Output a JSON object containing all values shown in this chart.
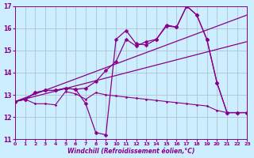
{
  "bg_color": "#cceeff",
  "line_color": "#880088",
  "grid_color": "#aabbcc",
  "xlabel": "Windchill (Refroidissement éolien,°C)",
  "ylim": [
    11,
    17
  ],
  "xlim": [
    0,
    23
  ],
  "yticks": [
    11,
    12,
    13,
    14,
    15,
    16,
    17
  ],
  "xticks": [
    0,
    1,
    2,
    3,
    4,
    5,
    6,
    7,
    8,
    9,
    10,
    11,
    12,
    13,
    14,
    15,
    16,
    17,
    18,
    19,
    20,
    21,
    22,
    23
  ],
  "series": [
    {
      "x": [
        0,
        1,
        2,
        3,
        4,
        5,
        6,
        7,
        8,
        9,
        10,
        11,
        12,
        13,
        14,
        15,
        16,
        17,
        18,
        19,
        20,
        21,
        22,
        23
      ],
      "y": [
        12.7,
        12.8,
        12.6,
        12.6,
        12.55,
        13.15,
        13.05,
        12.8,
        13.1,
        13.0,
        12.95,
        12.9,
        12.85,
        12.8,
        12.75,
        12.7,
        12.65,
        12.6,
        12.55,
        12.5,
        12.3,
        12.2,
        12.2,
        12.2
      ],
      "marker": "D",
      "markersize": 1.5,
      "linewidth": 0.8,
      "linestyle": "-"
    },
    {
      "x": [
        0,
        1,
        2,
        3,
        4,
        5,
        6,
        7,
        8,
        9,
        10,
        11,
        12,
        13,
        14,
        15,
        16,
        17,
        18,
        19,
        20,
        21,
        22,
        23
      ],
      "y": [
        12.7,
        12.8,
        13.1,
        13.2,
        13.2,
        13.3,
        13.25,
        12.6,
        11.3,
        11.2,
        15.5,
        15.9,
        15.3,
        15.25,
        15.5,
        16.15,
        16.05,
        17.0,
        16.6,
        15.5,
        13.55,
        12.2,
        12.2,
        12.2
      ],
      "marker": "D",
      "markersize": 2.5,
      "linewidth": 0.9,
      "linestyle": "-"
    },
    {
      "x": [
        0,
        1,
        2,
        3,
        4,
        5,
        6,
        7,
        8,
        9,
        10,
        11,
        12,
        13,
        14,
        15,
        16,
        17,
        18,
        19,
        20,
        21,
        22,
        23
      ],
      "y": [
        12.7,
        12.8,
        13.1,
        13.2,
        13.2,
        13.3,
        13.25,
        13.3,
        13.6,
        14.1,
        14.5,
        15.5,
        15.2,
        15.4,
        15.5,
        16.1,
        16.05,
        17.0,
        16.6,
        15.5,
        13.55,
        12.2,
        12.2,
        12.2
      ],
      "marker": "D",
      "markersize": 2.5,
      "linewidth": 0.9,
      "linestyle": "-"
    },
    {
      "x": [
        0,
        23
      ],
      "y": [
        12.7,
        15.4
      ],
      "marker": null,
      "linewidth": 0.9,
      "linestyle": "-"
    },
    {
      "x": [
        0,
        23
      ],
      "y": [
        12.7,
        16.6
      ],
      "marker": null,
      "linewidth": 0.9,
      "linestyle": "-"
    }
  ]
}
